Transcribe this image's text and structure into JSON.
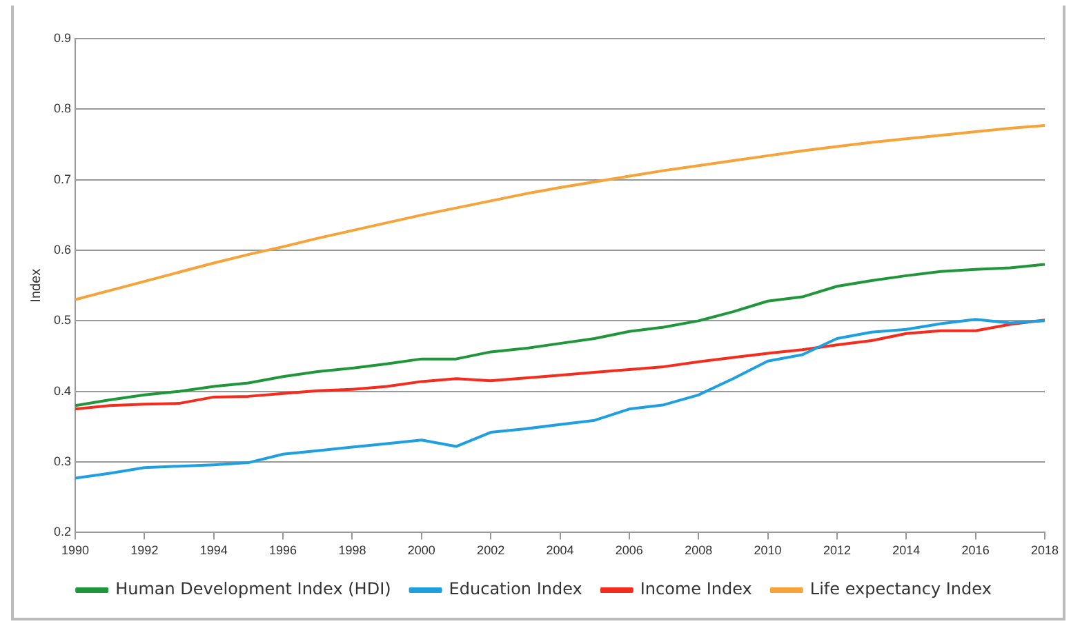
{
  "chart_data": {
    "type": "line",
    "ylabel": "Index",
    "x": [
      1990,
      1991,
      1992,
      1993,
      1994,
      1995,
      1996,
      1997,
      1998,
      1999,
      2000,
      2001,
      2002,
      2003,
      2004,
      2005,
      2006,
      2007,
      2008,
      2009,
      2010,
      2011,
      2012,
      2013,
      2014,
      2015,
      2016,
      2017,
      2018
    ],
    "series": [
      {
        "name": "Human Development Index (HDI)",
        "color": "#1e9639",
        "values": [
          0.38,
          0.388,
          0.395,
          0.4,
          0.407,
          0.412,
          0.421,
          0.428,
          0.433,
          0.439,
          0.446,
          0.446,
          0.456,
          0.461,
          0.468,
          0.475,
          0.485,
          0.491,
          0.5,
          0.513,
          0.528,
          0.534,
          0.549,
          0.557,
          0.564,
          0.57,
          0.573,
          0.575,
          0.58
        ]
      },
      {
        "name": "Education Index",
        "color": "#1e9fe0",
        "values": [
          0.277,
          0.284,
          0.292,
          0.294,
          0.296,
          0.299,
          0.311,
          0.316,
          0.321,
          0.326,
          0.331,
          0.322,
          0.342,
          0.347,
          0.353,
          0.359,
          0.375,
          0.381,
          0.395,
          0.418,
          0.443,
          0.452,
          0.475,
          0.484,
          0.488,
          0.496,
          0.502,
          0.497,
          0.5
        ]
      },
      {
        "name": "Income Index",
        "color": "#f32c1e",
        "values": [
          0.375,
          0.38,
          0.382,
          0.383,
          0.392,
          0.393,
          0.397,
          0.401,
          0.403,
          0.407,
          0.414,
          0.418,
          0.415,
          0.419,
          0.423,
          0.427,
          0.431,
          0.435,
          0.442,
          0.448,
          0.454,
          0.459,
          0.466,
          0.472,
          0.482,
          0.486,
          0.486,
          0.495,
          0.501
        ]
      },
      {
        "name": "Life expectancy Index",
        "color": "#f6a33a",
        "values": [
          0.53,
          0.543,
          0.556,
          0.569,
          0.582,
          0.594,
          0.605,
          0.617,
          0.628,
          0.639,
          0.65,
          0.66,
          0.67,
          0.68,
          0.689,
          0.697,
          0.705,
          0.713,
          0.72,
          0.727,
          0.734,
          0.741,
          0.747,
          0.753,
          0.758,
          0.763,
          0.768,
          0.773,
          0.777
        ]
      }
    ],
    "xlim": [
      1990,
      2018
    ],
    "xticks": [
      1990,
      1992,
      1994,
      1996,
      1998,
      2000,
      2002,
      2004,
      2006,
      2008,
      2010,
      2012,
      2014,
      2016,
      2018
    ],
    "ylim": [
      0.2,
      0.9
    ],
    "yticks": [
      0.2,
      0.3,
      0.4,
      0.5,
      0.6,
      0.7,
      0.8,
      0.9
    ],
    "grid": "y",
    "legend": "bottom",
    "marker": "none",
    "line_style": "solid"
  }
}
